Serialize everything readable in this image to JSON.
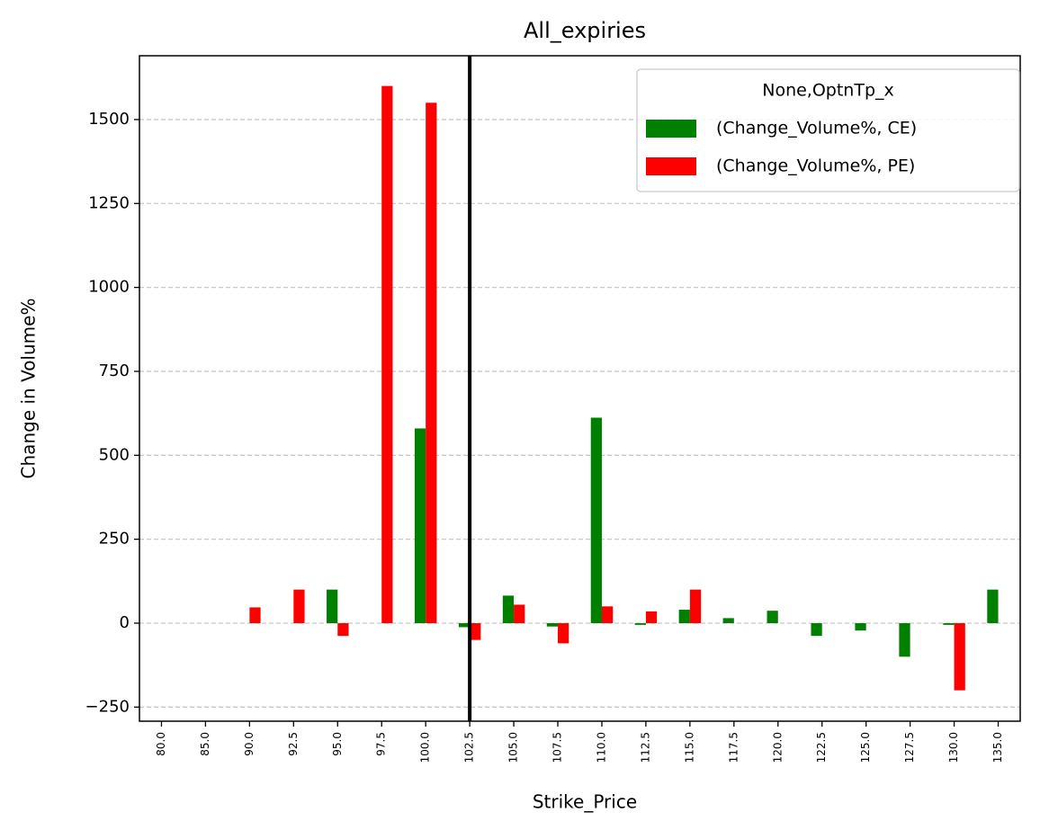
{
  "chart_data": {
    "type": "bar",
    "title": "All_expiries",
    "x_label": "Strike_Price",
    "y_label": "Change in Volume%",
    "categories": [
      "80.0",
      "85.0",
      "90.0",
      "92.5",
      "95.0",
      "97.5",
      "100.0",
      "102.5",
      "105.0",
      "107.5",
      "110.0",
      "112.5",
      "115.0",
      "117.5",
      "120.0",
      "122.5",
      "125.0",
      "127.5",
      "130.0",
      "135.0"
    ],
    "series": [
      {
        "name": "(Change_Volume%, CE)",
        "color": "#008000",
        "values": [
          null,
          null,
          null,
          null,
          100,
          null,
          580,
          -12,
          82,
          -10,
          612,
          -5,
          40,
          15,
          37,
          -38,
          -22,
          -100,
          -5,
          100
        ]
      },
      {
        "name": "(Change_Volume%, PE)",
        "color": "#ff0000",
        "values": [
          null,
          null,
          47,
          100,
          -38,
          1600,
          1550,
          -50,
          55,
          -60,
          50,
          35,
          100,
          null,
          null,
          null,
          null,
          null,
          -200,
          null
        ]
      }
    ],
    "legend_title": "None,OptnTp_x",
    "legend": "upper right",
    "vline": 102.5,
    "ylim": [
      -292,
      1690
    ],
    "yticks": [
      {
        "value": -250,
        "label": "−250"
      },
      0,
      250,
      500,
      750,
      1000,
      1250,
      1500
    ],
    "grid": true
  }
}
